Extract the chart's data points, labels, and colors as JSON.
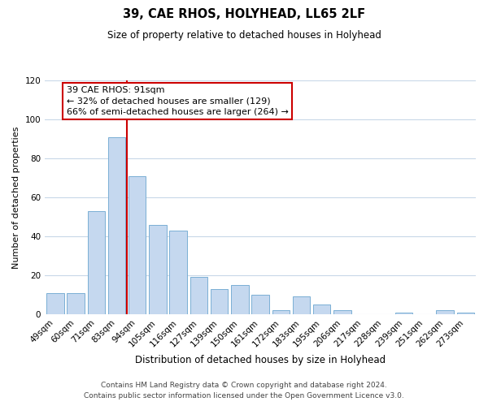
{
  "title": "39, CAE RHOS, HOLYHEAD, LL65 2LF",
  "subtitle": "Size of property relative to detached houses in Holyhead",
  "xlabel": "Distribution of detached houses by size in Holyhead",
  "ylabel": "Number of detached properties",
  "bar_labels": [
    "49sqm",
    "60sqm",
    "71sqm",
    "83sqm",
    "94sqm",
    "105sqm",
    "116sqm",
    "127sqm",
    "139sqm",
    "150sqm",
    "161sqm",
    "172sqm",
    "183sqm",
    "195sqm",
    "206sqm",
    "217sqm",
    "228sqm",
    "239sqm",
    "251sqm",
    "262sqm",
    "273sqm"
  ],
  "bar_values": [
    11,
    11,
    53,
    91,
    71,
    46,
    43,
    19,
    13,
    15,
    10,
    2,
    9,
    5,
    2,
    0,
    0,
    1,
    0,
    2,
    1
  ],
  "bar_color": "#c5d8ef",
  "bar_edge_color": "#7aafd4",
  "reference_line_color": "#cc0000",
  "ylim": [
    0,
    120
  ],
  "yticks": [
    0,
    20,
    40,
    60,
    80,
    100,
    120
  ],
  "annotation_title": "39 CAE RHOS: 91sqm",
  "annotation_line2": "← 32% of detached houses are smaller (129)",
  "annotation_line3": "66% of semi-detached houses are larger (264) →",
  "annotation_box_facecolor": "#ffffff",
  "annotation_box_edgecolor": "#cc0000",
  "footnote1": "Contains HM Land Registry data © Crown copyright and database right 2024.",
  "footnote2": "Contains public sector information licensed under the Open Government Licence v3.0.",
  "background_color": "#ffffff",
  "grid_color": "#c8d8e8",
  "title_fontsize": 10.5,
  "subtitle_fontsize": 8.5,
  "xlabel_fontsize": 8.5,
  "ylabel_fontsize": 8.0,
  "tick_fontsize": 7.5,
  "annotation_fontsize": 8.0,
  "footnote_fontsize": 6.5
}
